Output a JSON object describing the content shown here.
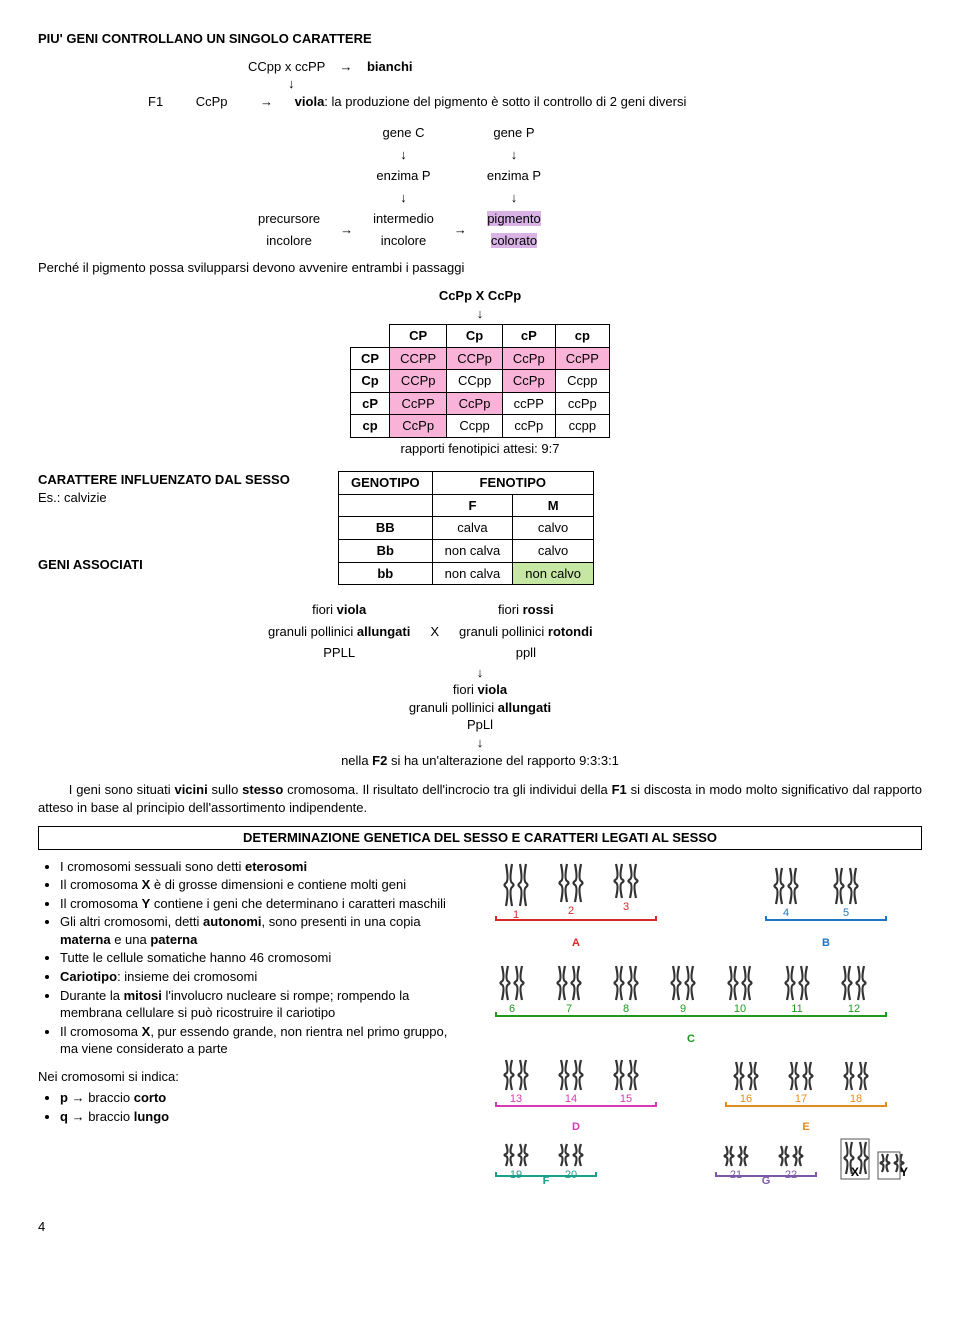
{
  "title": "PIU' GENI CONTROLLANO UN SINGOLO CARATTERE",
  "cross1": {
    "parents": "CCpp x ccPP",
    "arrow": "→",
    "pheno": "bianchi"
  },
  "down": "↓",
  "f1": {
    "label": "F1",
    "geno": "CcPp",
    "arrow": "→",
    "desc_pre": "viola",
    "desc_post": ": la produzione del pigmento è sotto il controllo di 2 geni diversi"
  },
  "pathway": {
    "geneC": "gene C",
    "geneP": "gene P",
    "enzP1": "enzima P",
    "enzP2": "enzima P",
    "prec1": "precursore",
    "prec2": "incolore",
    "int1": "intermedio",
    "int2": "incolore",
    "pig1": "pigmento",
    "pig2": "colorato"
  },
  "passaggi": "Perché il pigmento possa svilupparsi devono avvenire entrambi i passaggi",
  "cross2": "CcPp X CcPp",
  "punnett": {
    "head": [
      "",
      "CP",
      "Cp",
      "cP",
      "cp"
    ],
    "rows": [
      [
        "CP",
        "CCPP",
        "CCPp",
        "CcPp",
        "CcPP"
      ],
      [
        "Cp",
        "CCPp",
        "CCpp",
        "CcPp",
        "Ccpp"
      ],
      [
        "cP",
        "CcPP",
        "CcPp",
        "ccPP",
        "ccPp"
      ],
      [
        "cp",
        "CcPp",
        "Ccpp",
        "ccPp",
        "ccpp"
      ]
    ],
    "ratio": "rapporti fenotipici attesi: 9:7"
  },
  "carattere_sesso": "CARATTERE INFLUENZATO DAL SESSO",
  "calvizie": "Es.: calvizie",
  "geni_assoc": "GENI ASSOCIATI",
  "pheno_table": {
    "h1": "GENOTIPO",
    "h2": "FENOTIPO",
    "F": "F",
    "M": "M",
    "rows": [
      [
        "BB",
        "calva",
        "calvo"
      ],
      [
        "Bb",
        "non calva",
        "calvo"
      ],
      [
        "bb",
        "non calva",
        "non calvo"
      ]
    ]
  },
  "flowers": {
    "l1a": "fiori ",
    "l1a_b": "viola",
    "l1b": "fiori ",
    "l1b_b": "rossi",
    "l2a1": "granuli pollinici ",
    "l2a2": "allungati",
    "X": "X",
    "l2b1": "granuli pollinici ",
    "l2b2": "rotondi",
    "l3a": "PPLL",
    "l3b": "ppll",
    "mid1": "fiori ",
    "mid1b": "viola",
    "mid2a": "granuli pollinici ",
    "mid2b": "allungati",
    "mid3": "PpLl",
    "f2_pre": "nella ",
    "f2_b": "F2",
    "f2_post": " si ha un'alterazione del rapporto 9:3:3:1"
  },
  "para1_pre": "I geni sono situati ",
  "para1_b1": "vicini",
  "para1_mid1": " sullo ",
  "para1_b2": "stesso",
  "para1_mid2": " cromosoma. Il risultato dell'incrocio tra gli individui della ",
  "para1_b3": "F1",
  "para1_post": " si discosta in modo molto significativo dal rapporto atteso in base al principio dell'assortimento indipendente.",
  "sec_title": "DETERMINAZIONE GENETICA DEL SESSO E CARATTERI LEGATI AL SESSO",
  "bullets": [
    {
      "pre": "I cromosomi sessuali sono detti ",
      "b": "eterosomi",
      "post": ""
    },
    {
      "pre": "Il cromosoma ",
      "b": "X",
      "post": " è di grosse dimensioni e contiene molti geni"
    },
    {
      "pre": "Il cromosoma ",
      "b": "Y",
      "post": " contiene i geni che determinano i caratteri maschili"
    },
    {
      "pre": "Gli altri cromosomi, detti ",
      "b": "autonomi",
      "post": ", sono presenti in una copia ",
      "b2": "materna",
      "mid": " e una ",
      "b3": "paterna"
    },
    {
      "pre": "Tutte le cellule somatiche hanno 46 cromosomi"
    },
    {
      "b": "Cariotipo",
      "post": ": insieme dei cromosomi"
    },
    {
      "pre": "Durante la ",
      "b": "mitosi",
      "post": " l'involucro nucleare si rompe; rompendo la membrana cellulare si può ricostruire il cariotipo"
    },
    {
      "pre": "Il cromosoma ",
      "b": "X",
      "post": ", pur essendo grande, non rientra nel primo gruppo, ma viene considerato a parte"
    }
  ],
  "nei": "Nei cromosomi si indica:",
  "pq": [
    {
      "b": "p",
      "arr": " → ",
      "t": "braccio ",
      "b2": "corto"
    },
    {
      "b": "q",
      "arr": " → ",
      "t": "braccio ",
      "b2": "lungo"
    }
  ],
  "pagenum": "4",
  "karyotype": {
    "groups": [
      {
        "label": "A",
        "color": "#d62a2a",
        "nums": [
          1,
          2,
          3
        ]
      },
      {
        "label": "B",
        "color": "#1e76c2",
        "nums": [
          4,
          5
        ]
      },
      {
        "label": "C",
        "color": "#1e9a1e",
        "nums": [
          6,
          7,
          8,
          9,
          10,
          11,
          12
        ]
      },
      {
        "label": "D",
        "color": "#d63ab3",
        "nums": [
          13,
          14,
          15
        ]
      },
      {
        "label": "E",
        "color": "#e38b1a",
        "nums": [
          16,
          17,
          18
        ]
      },
      {
        "label": "F",
        "color": "#1aa088",
        "nums": [
          19,
          20
        ]
      },
      {
        "label": "G",
        "color": "#7a5aa8",
        "nums": [
          21,
          22
        ]
      }
    ],
    "X": "X",
    "Y": "Y"
  }
}
